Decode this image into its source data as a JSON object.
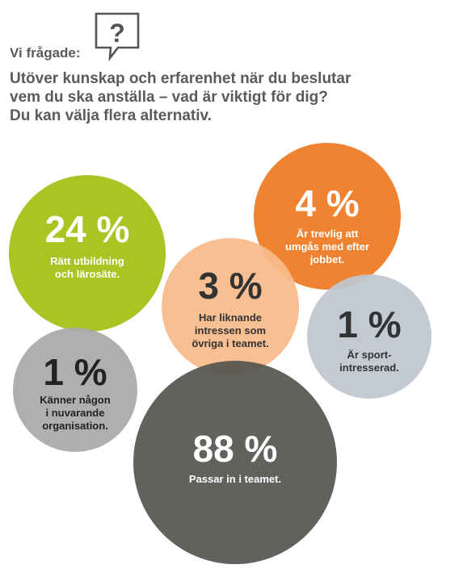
{
  "survey": {
    "lead": "Vi frågade:",
    "question_lines": [
      "Utöver kunskap och erfarenhet när du beslutar",
      "vem du ska anställa – vad är viktigt för dig?",
      "Du kan välja flera alternativ."
    ]
  },
  "icons": {
    "question": "question-bubble-icon"
  },
  "chart_data": {
    "type": "bubble",
    "unit": "%",
    "items": [
      {
        "value": 24,
        "value_label": "24 %",
        "label_lines": [
          "Rätt utbildning",
          "och lärosäte."
        ],
        "color": "#a3bf12",
        "text_color": "#ffffff"
      },
      {
        "value": 4,
        "value_label": "4 %",
        "label_lines": [
          "Är trevlig att",
          "umgås med efter",
          "jobbet."
        ],
        "color": "#ee7a22",
        "text_color": "#ffffff"
      },
      {
        "value": 3,
        "value_label": "3 %",
        "label_lines": [
          "Har liknande",
          "intressen som",
          "övriga i teamet."
        ],
        "color": "#f7bb8a",
        "text_color": "#333333"
      },
      {
        "value": 1,
        "value_label": "1 %",
        "label_lines": [
          "Är sport-",
          "intresserad."
        ],
        "color": "#bfc6ce",
        "text_color": "#333333"
      },
      {
        "value": 1,
        "value_label": "1 %",
        "label_lines": [
          "Känner någon",
          "i nuvarande",
          "organisation."
        ],
        "color": "#a9a9a9",
        "text_color": "#222222"
      },
      {
        "value": 88,
        "value_label": "88 %",
        "label_lines": [
          "Passar in i teamet."
        ],
        "color": "#555552",
        "text_color": "#ffffff"
      }
    ]
  }
}
